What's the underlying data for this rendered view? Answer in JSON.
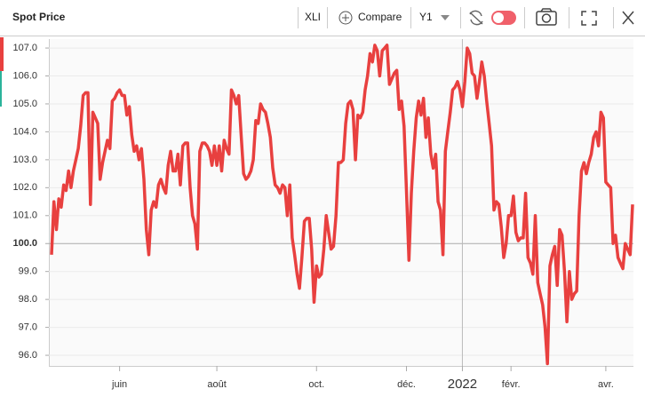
{
  "toolbar": {
    "title": "Spot Price",
    "symbol": "XLI",
    "compare": "Compare",
    "axis": "Y1"
  },
  "chart_data": {
    "type": "line",
    "color": "#e8403f",
    "categories": [
      null,
      null,
      null,
      null,
      null,
      null,
      null,
      null,
      null,
      null,
      null,
      null,
      null,
      null,
      null,
      null,
      null,
      null,
      null,
      null,
      null,
      null,
      null,
      null,
      null,
      null,
      null,
      null,
      "juin",
      null,
      null,
      null,
      null,
      null,
      null,
      null,
      null,
      null,
      null,
      null,
      null,
      null,
      null,
      null,
      null,
      null,
      null,
      null,
      null,
      null,
      null,
      null,
      null,
      null,
      null,
      null,
      null,
      null,
      null,
      null,
      null,
      null,
      null,
      null,
      null,
      null,
      null,
      null,
      "août",
      null,
      null,
      null,
      null,
      null,
      null,
      null,
      null,
      null,
      null,
      null,
      null,
      null,
      null,
      null,
      null,
      null,
      null,
      null,
      null,
      null,
      null,
      null,
      null,
      null,
      null,
      null,
      null,
      null,
      null,
      null,
      null,
      null,
      null,
      null,
      null,
      null,
      null,
      null,
      null,
      "oct.",
      null,
      null,
      null,
      null,
      null,
      null,
      null,
      null,
      null,
      null,
      null,
      null,
      null,
      null,
      null,
      null,
      null,
      null,
      null,
      null,
      null,
      null,
      null,
      null,
      null,
      null,
      null,
      null,
      null,
      null,
      null,
      null,
      null,
      null,
      null,
      null,
      "déc.",
      null,
      null,
      null,
      null,
      null,
      null,
      null,
      null,
      null,
      null,
      null,
      null,
      null,
      null,
      null,
      null,
      null,
      null,
      null,
      null,
      null,
      null,
      "2022",
      null,
      null,
      null,
      null,
      null,
      null,
      null,
      null,
      null,
      null,
      null,
      null,
      null,
      null,
      null,
      null,
      null,
      null,
      null,
      "févr.",
      null,
      null,
      null,
      null,
      null,
      null,
      null,
      null,
      null,
      null,
      null,
      null,
      null,
      null,
      null,
      null,
      null,
      null,
      null,
      null,
      null,
      null,
      null,
      null,
      null,
      null,
      null,
      null,
      null,
      null,
      null,
      null,
      null,
      null,
      null,
      null,
      null,
      null,
      "avr.",
      null,
      null,
      null,
      null,
      null,
      null,
      null,
      null,
      null,
      null,
      null
    ],
    "values": [
      99.6,
      101.5,
      100.5,
      101.6,
      101.3,
      102.1,
      101.9,
      102.6,
      102.0,
      102.6,
      103.0,
      103.4,
      104.2,
      105.3,
      105.4,
      105.4,
      101.4,
      104.7,
      104.5,
      104.3,
      102.3,
      102.9,
      103.3,
      103.7,
      103.4,
      105.1,
      105.2,
      105.4,
      105.5,
      105.3,
      105.3,
      104.6,
      104.9,
      103.9,
      103.3,
      103.5,
      103.0,
      103.4,
      102.3,
      100.5,
      99.6,
      101.2,
      101.5,
      101.3,
      102.1,
      102.3,
      102.0,
      101.8,
      102.8,
      103.3,
      102.6,
      102.6,
      103.2,
      102.1,
      103.5,
      103.6,
      103.6,
      102.0,
      101.0,
      100.7,
      99.8,
      103.3,
      103.6,
      103.6,
      103.5,
      103.3,
      102.8,
      103.5,
      102.8,
      103.5,
      102.6,
      103.7,
      103.4,
      103.2,
      105.5,
      105.3,
      105.0,
      105.3,
      103.9,
      102.5,
      102.3,
      102.4,
      102.6,
      103.0,
      104.4,
      104.3,
      105.0,
      104.8,
      104.7,
      104.3,
      103.8,
      102.7,
      102.1,
      102.0,
      101.8,
      102.1,
      102.0,
      101.0,
      102.1,
      100.2,
      99.6,
      98.9,
      98.4,
      99.5,
      100.8,
      100.9,
      100.9,
      99.8,
      97.9,
      99.2,
      98.8,
      98.9,
      99.8,
      101.0,
      100.4,
      99.8,
      99.9,
      101.0,
      102.9,
      102.9,
      103.0,
      104.3,
      105.0,
      105.1,
      104.8,
      103.0,
      104.6,
      104.5,
      104.7,
      105.5,
      106.0,
      106.8,
      106.5,
      107.1,
      106.9,
      106.0,
      106.9,
      107.0,
      107.1,
      105.7,
      105.9,
      106.1,
      106.2,
      104.8,
      105.1,
      104.2,
      101.9,
      99.4,
      101.8,
      103.3,
      104.5,
      105.1,
      104.6,
      105.2,
      103.8,
      104.5,
      103.2,
      102.7,
      103.2,
      101.5,
      101.2,
      99.6,
      103.3,
      104.0,
      104.7,
      105.5,
      105.6,
      105.8,
      105.5,
      104.9,
      105.8,
      107.0,
      106.8,
      106.1,
      106.0,
      105.2,
      105.8,
      106.5,
      106.0,
      105.1,
      104.3,
      103.5,
      101.2,
      101.5,
      101.4,
      100.6,
      99.5,
      100.0,
      101.0,
      101.0,
      101.7,
      100.4,
      100.1,
      100.2,
      100.2,
      101.8,
      99.5,
      99.3,
      98.9,
      101.0,
      98.6,
      98.2,
      97.8,
      97.0,
      95.7,
      99.2,
      99.6,
      99.9,
      98.5,
      100.5,
      100.3,
      99.0,
      97.2,
      99.0,
      98.0,
      98.2,
      98.3,
      101.0,
      102.6,
      102.9,
      102.5,
      102.9,
      103.2,
      103.8,
      104.0,
      103.5,
      104.7,
      104.5,
      102.2,
      102.1,
      102.0,
      100.0,
      100.3,
      99.5,
      99.3,
      99.1,
      100.0,
      99.8,
      99.6,
      101.4
    ],
    "ylim": [
      95.62,
      107.32
    ],
    "yticks": [
      {
        "value": 96,
        "label": "96.0"
      },
      {
        "value": 97,
        "label": "97.0"
      },
      {
        "value": 98,
        "label": "98.0"
      },
      {
        "value": 99,
        "label": "99.0"
      },
      {
        "value": 100,
        "label": "100.0"
      },
      {
        "value": 101,
        "label": "101.0"
      },
      {
        "value": 102,
        "label": "102.0"
      },
      {
        "value": 103,
        "label": "103.0"
      },
      {
        "value": 104,
        "label": "104.0"
      },
      {
        "value": 105,
        "label": "105.0"
      },
      {
        "value": 106,
        "label": "106.0"
      },
      {
        "value": 107,
        "label": "107.0"
      }
    ],
    "baseline": 100,
    "grid": true
  }
}
